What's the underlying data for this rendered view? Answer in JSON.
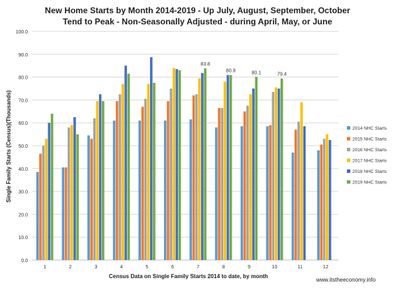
{
  "chart_data": {
    "type": "bar",
    "title": "New Home Starts by Month 2014-2019 - Up July, August, September, October",
    "subtitle": "Tend to Peak - Non-Seasonally Adjusted - during April, May, or June",
    "xlabel": "Census Data on Single Family Starts 2014 to date, by month",
    "ylabel": "Single Family Starts (Census)(Thousands)",
    "ylim": [
      0,
      100
    ],
    "yticks": [
      "0.0",
      "10.0",
      "20.0",
      "30.0",
      "40.0",
      "50.0",
      "60.0",
      "70.0",
      "80.0",
      "90.0",
      "100.0"
    ],
    "categories": [
      "1",
      "2",
      "3",
      "4",
      "5",
      "6",
      "7",
      "8",
      "9",
      "10",
      "11",
      "12"
    ],
    "grid": true,
    "legend_position": "right",
    "series": [
      {
        "name": "2014 NHC Starts",
        "color": "#5B9BD5",
        "values": [
          38.5,
          40.5,
          54.5,
          61.0,
          61.0,
          61.0,
          61.5,
          58.0,
          58.5,
          58.5,
          47.0,
          48.0
        ]
      },
      {
        "name": "2015 NHC Starts",
        "color": "#ED7D31",
        "values": [
          46.5,
          40.5,
          53.0,
          69.5,
          67.0,
          69.5,
          72.0,
          66.5,
          65.0,
          59.0,
          57.0,
          50.5
        ]
      },
      {
        "name": "2016 NHC Starts",
        "color": "#A5A5A5",
        "values": [
          50.0,
          58.0,
          62.0,
          72.5,
          70.5,
          75.0,
          72.5,
          66.5,
          67.5,
          73.5,
          60.5,
          53.0
        ]
      },
      {
        "name": "2017 NHC Starts",
        "color": "#FFC000",
        "values": [
          53.0,
          59.0,
          69.5,
          77.0,
          77.0,
          84.0,
          79.5,
          78.0,
          72.5,
          75.5,
          69.0,
          55.0
        ]
      },
      {
        "name": "2018 NHC Starts",
        "color": "#4472C4",
        "values": [
          60.0,
          62.5,
          72.5,
          85.0,
          88.7,
          83.5,
          81.8,
          80.9,
          75.0,
          75.0,
          58.5,
          52.5
        ]
      },
      {
        "name": "2019 NHC Starts",
        "color": "#70AD47",
        "values": [
          64.0,
          55.0,
          69.5,
          81.5,
          77.5,
          83.0,
          83.8,
          80.9,
          80.1,
          79.4,
          null,
          null
        ]
      }
    ],
    "data_labels": [
      {
        "series": 5,
        "index": 6,
        "text": "83.8"
      },
      {
        "series": 5,
        "index": 7,
        "text": "80.9"
      },
      {
        "series": 5,
        "index": 8,
        "text": "80.1"
      },
      {
        "series": 5,
        "index": 9,
        "text": "79.4"
      }
    ],
    "source_text": "www.itstheeconomy.info"
  }
}
